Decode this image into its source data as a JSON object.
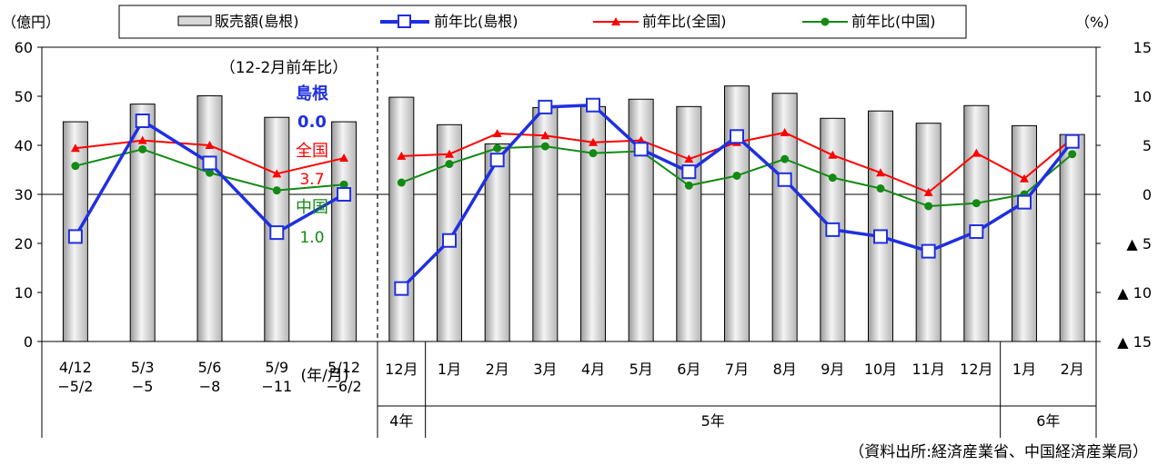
{
  "chart_data": {
    "type": "bar+line",
    "y_left_label": "（億円）",
    "y_right_label": "（%）",
    "y_left_range": [
      0,
      60
    ],
    "y_left_ticks": [
      "0",
      "10",
      "20",
      "30",
      "40",
      "50",
      "60"
    ],
    "y_right_range": [
      -15,
      15
    ],
    "y_right_ticks": [
      "▲ 15",
      "▲ 10",
      "▲ 5",
      "0",
      "5",
      "10",
      "15"
    ],
    "legend": [
      "販売額(島根)",
      "前年比(島根)",
      "前年比(全国)",
      "前年比(中国)"
    ],
    "series_colors": {
      "shimane": "#1f2fe0",
      "zenkoku": "#ff0000",
      "chugoku": "#138a13"
    },
    "period_categories": [
      {
        "label1": "4/12",
        "label2": "−5/2"
      },
      {
        "label1": "5/3",
        "label2": "−5"
      },
      {
        "label1": "5/6",
        "label2": "−8"
      },
      {
        "label1": "5/9",
        "label2": "−11"
      },
      {
        "label1": "5/12",
        "label2": "−6/2"
      }
    ],
    "period_unit_label": "(年/月)",
    "month_categories": [
      "12月",
      "1月",
      "2月",
      "3月",
      "4月",
      "5月",
      "6月",
      "7月",
      "8月",
      "9月",
      "10月",
      "11月",
      "12月",
      "1月",
      "2月"
    ],
    "year_groups": [
      {
        "label": "4年",
        "span": 1
      },
      {
        "label": "5年",
        "span": 12
      },
      {
        "label": "6年",
        "span": 2
      }
    ],
    "sales_period": [
      44.8,
      48.4,
      50.1,
      45.7,
      44.8
    ],
    "sales_month": [
      49.8,
      44.2,
      40.3,
      47.7,
      47.9,
      49.4,
      47.9,
      52.1,
      50.6,
      45.5,
      47.0,
      44.5,
      48.1,
      44.0,
      42.2
    ],
    "yoy_shimane_period": [
      -4.3,
      7.5,
      3.2,
      -3.9,
      0.0
    ],
    "yoy_shimane_month": [
      -9.6,
      -4.7,
      3.5,
      8.9,
      9.1,
      4.6,
      2.3,
      5.9,
      1.5,
      -3.6,
      -4.3,
      -5.8,
      -3.8,
      -0.8,
      5.4
    ],
    "yoy_zenkoku_period": [
      4.7,
      5.5,
      5.0,
      2.1,
      3.7
    ],
    "yoy_zenkoku_month": [
      3.9,
      4.1,
      6.2,
      6.0,
      5.3,
      5.5,
      3.6,
      5.3,
      6.3,
      4.0,
      2.2,
      0.2,
      4.2,
      1.6,
      5.7
    ],
    "yoy_chugoku_period": [
      2.9,
      4.6,
      2.2,
      0.4,
      1.0
    ],
    "yoy_chugoku_month": [
      1.2,
      3.1,
      4.7,
      4.9,
      4.2,
      4.4,
      0.9,
      1.9,
      3.6,
      1.7,
      0.6,
      -1.2,
      -0.9,
      0.0,
      4.1
    ],
    "annotation": {
      "title": "（12-2月前年比）",
      "shimane_name": "島根",
      "shimane_value": "0.0",
      "zenkoku_name": "全国",
      "zenkoku_value": "3.7",
      "chugoku_name": "中国",
      "chugoku_value": "1.0"
    },
    "source": "（資料出所:経済産業省、中国経済産業局）"
  }
}
